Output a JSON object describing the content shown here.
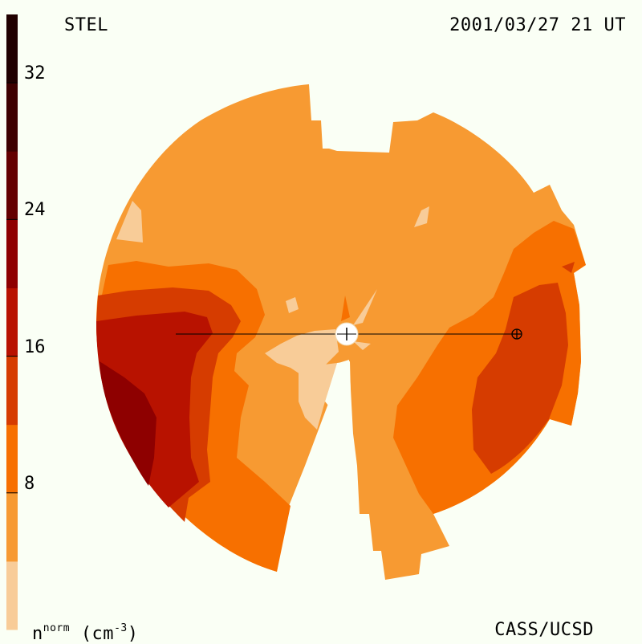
{
  "header": {
    "station": "STEL",
    "datetime": "2001/03/27 21 UT"
  },
  "footer": {
    "credit": "CASS/UCSD",
    "units_base": "n",
    "units_sup": "norm",
    "units_rest": "(cm",
    "units_exp": "-3",
    "units_close": ")"
  },
  "chart_data": {
    "type": "heatmap",
    "title": "",
    "colorbar": {
      "label": "n^norm (cm^-3)",
      "range": [
        0,
        36
      ],
      "ticks": [
        8,
        16,
        24,
        32
      ],
      "tick_labels": [
        "8",
        "16",
        "24",
        "32"
      ],
      "levels": [
        {
          "from": 0,
          "to": 4,
          "color": "#f8cc98"
        },
        {
          "from": 4,
          "to": 8,
          "color": "#f79a32"
        },
        {
          "from": 8,
          "to": 12,
          "color": "#f77000"
        },
        {
          "from": 12,
          "to": 16,
          "color": "#d63c00"
        },
        {
          "from": 16,
          "to": 20,
          "color": "#b81200"
        },
        {
          "from": 20,
          "to": 24,
          "color": "#8e0000"
        },
        {
          "from": 24,
          "to": 28,
          "color": "#640000"
        },
        {
          "from": 28,
          "to": 32,
          "color": "#3e0000"
        },
        {
          "from": 32,
          "to": 36,
          "color": "#200000"
        }
      ]
    },
    "map_regions": [
      {
        "name": "background",
        "color": "#f79a32"
      },
      {
        "name": "west-band-1",
        "color": "#f77000"
      },
      {
        "name": "west-band-2",
        "color": "#d63c00"
      },
      {
        "name": "west-band-3",
        "color": "#b81200"
      },
      {
        "name": "west-core",
        "color": "#8e0000"
      },
      {
        "name": "east-band-1",
        "color": "#f77000"
      },
      {
        "name": "east-band-2",
        "color": "#d63c00"
      },
      {
        "name": "light-patch-nw",
        "color": "#f8cc98"
      },
      {
        "name": "light-patch-center",
        "color": "#f8cc98"
      }
    ],
    "markers": [
      {
        "name": "sun",
        "symbol": "circle"
      },
      {
        "name": "earth",
        "symbol": "circle-plus"
      }
    ]
  }
}
